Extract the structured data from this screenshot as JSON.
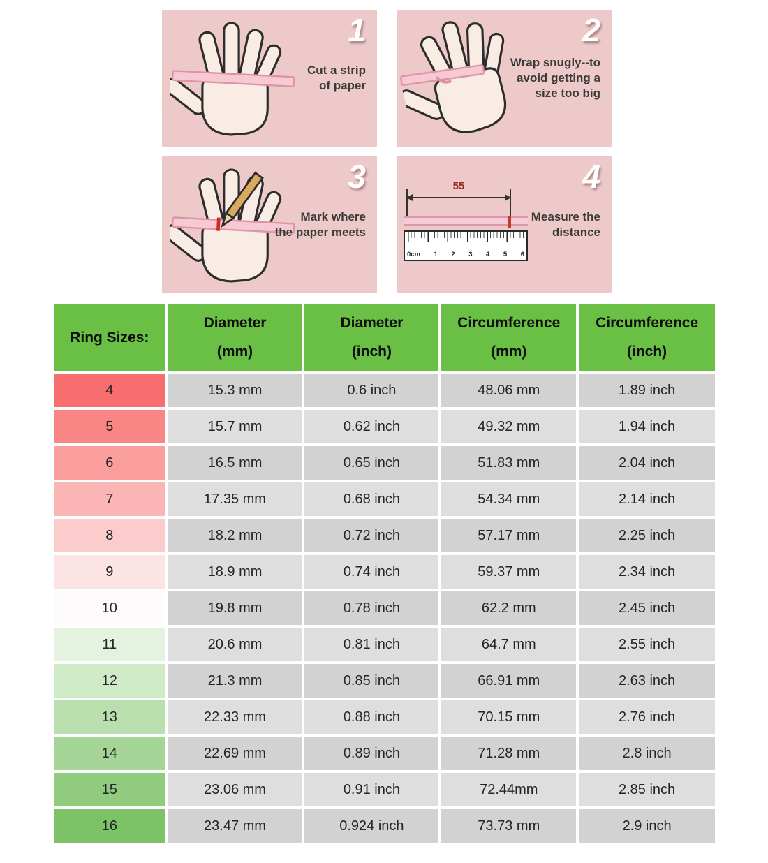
{
  "colors": {
    "panel_bg": "#edc9c9",
    "header_green": "#6abf45",
    "cell_dark": "#d2d2d2",
    "cell_light": "#dedede",
    "accent_red": "#c0392b",
    "strip_pink": "#f6cbd5"
  },
  "steps": [
    {
      "number": "1",
      "text": "Cut a strip\nof paper"
    },
    {
      "number": "2",
      "text": "Wrap snugly--to\navoid getting a\nsize too big"
    },
    {
      "number": "3",
      "text": "Mark where\nthe paper meets"
    },
    {
      "number": "4",
      "text": "Measure the\ndistance"
    }
  ],
  "ruler": {
    "measurement": "55",
    "ticks": [
      "0cm",
      "1",
      "2",
      "3",
      "4",
      "5",
      "6"
    ]
  },
  "table": {
    "header": {
      "ring_sizes": "Ring Sizes:",
      "cols": [
        {
          "line1": "Diameter",
          "line2": "(mm)"
        },
        {
          "line1": "Diameter",
          "line2": "(inch)"
        },
        {
          "line1": "Circumference",
          "line2": "(mm)"
        },
        {
          "line1": "Circumference",
          "line2": "(inch)"
        }
      ]
    },
    "row_colors": [
      "#f86e6e",
      "#f98585",
      "#fa9d9d",
      "#fbb5b5",
      "#fccccc",
      "#fde4e4",
      "#fdfbfb",
      "#e4f3df",
      "#cfeac7",
      "#badfae",
      "#a5d596",
      "#90cb7e",
      "#7cc267"
    ],
    "rows": [
      {
        "size": "4",
        "diameter_mm": "15.3 mm",
        "diameter_inch": "0.6 inch",
        "circumference_mm": "48.06 mm",
        "circumference_inch": "1.89 inch"
      },
      {
        "size": "5",
        "diameter_mm": "15.7 mm",
        "diameter_inch": "0.62 inch",
        "circumference_mm": "49.32 mm",
        "circumference_inch": "1.94 inch"
      },
      {
        "size": "6",
        "diameter_mm": "16.5 mm",
        "diameter_inch": "0.65 inch",
        "circumference_mm": "51.83 mm",
        "circumference_inch": "2.04 inch"
      },
      {
        "size": "7",
        "diameter_mm": "17.35 mm",
        "diameter_inch": "0.68 inch",
        "circumference_mm": "54.34 mm",
        "circumference_inch": "2.14 inch"
      },
      {
        "size": "8",
        "diameter_mm": "18.2 mm",
        "diameter_inch": "0.72 inch",
        "circumference_mm": "57.17 mm",
        "circumference_inch": "2.25 inch"
      },
      {
        "size": "9",
        "diameter_mm": "18.9 mm",
        "diameter_inch": "0.74 inch",
        "circumference_mm": "59.37 mm",
        "circumference_inch": "2.34 inch"
      },
      {
        "size": "10",
        "diameter_mm": "19.8 mm",
        "diameter_inch": "0.78 inch",
        "circumference_mm": "62.2 mm",
        "circumference_inch": "2.45 inch"
      },
      {
        "size": "11",
        "diameter_mm": "20.6 mm",
        "diameter_inch": "0.81 inch",
        "circumference_mm": "64.7 mm",
        "circumference_inch": "2.55 inch"
      },
      {
        "size": "12",
        "diameter_mm": "21.3 mm",
        "diameter_inch": "0.85 inch",
        "circumference_mm": "66.91 mm",
        "circumference_inch": "2.63 inch"
      },
      {
        "size": "13",
        "diameter_mm": "22.33 mm",
        "diameter_inch": "0.88 inch",
        "circumference_mm": "70.15 mm",
        "circumference_inch": "2.76 inch"
      },
      {
        "size": "14",
        "diameter_mm": "22.69 mm",
        "diameter_inch": "0.89 inch",
        "circumference_mm": "71.28 mm",
        "circumference_inch": "2.8 inch"
      },
      {
        "size": "15",
        "diameter_mm": "23.06 mm",
        "diameter_inch": "0.91 inch",
        "circumference_mm": "72.44mm",
        "circumference_inch": "2.85 inch"
      },
      {
        "size": "16",
        "diameter_mm": "23.47 mm",
        "diameter_inch": "0.924 inch",
        "circumference_mm": "73.73 mm",
        "circumference_inch": "2.9 inch"
      }
    ]
  },
  "chart_data": {
    "type": "table",
    "title": "Ring Sizes",
    "columns": [
      "Ring Sizes:",
      "Diameter (mm)",
      "Diameter (inch)",
      "Circumference (mm)",
      "Circumference (inch)"
    ],
    "rows": [
      [
        "4",
        "15.3 mm",
        "0.6 inch",
        "48.06 mm",
        "1.89 inch"
      ],
      [
        "5",
        "15.7 mm",
        "0.62 inch",
        "49.32 mm",
        "1.94 inch"
      ],
      [
        "6",
        "16.5 mm",
        "0.65 inch",
        "51.83 mm",
        "2.04 inch"
      ],
      [
        "7",
        "17.35 mm",
        "0.68 inch",
        "54.34 mm",
        "2.14 inch"
      ],
      [
        "8",
        "18.2 mm",
        "0.72 inch",
        "57.17 mm",
        "2.25 inch"
      ],
      [
        "9",
        "18.9 mm",
        "0.74 inch",
        "59.37 mm",
        "2.34 inch"
      ],
      [
        "10",
        "19.8 mm",
        "0.78 inch",
        "62.2 mm",
        "2.45 inch"
      ],
      [
        "11",
        "20.6 mm",
        "0.81 inch",
        "64.7 mm",
        "2.55 inch"
      ],
      [
        "12",
        "21.3 mm",
        "0.85 inch",
        "66.91 mm",
        "2.63 inch"
      ],
      [
        "13",
        "22.33 mm",
        "0.88 inch",
        "70.15 mm",
        "2.76 inch"
      ],
      [
        "14",
        "22.69 mm",
        "0.89 inch",
        "71.28 mm",
        "2.8 inch"
      ],
      [
        "15",
        "23.06 mm",
        "0.91 inch",
        "72.44mm",
        "2.85 inch"
      ],
      [
        "16",
        "23.47 mm",
        "0.924 inch",
        "73.73 mm",
        "2.9 inch"
      ]
    ]
  }
}
